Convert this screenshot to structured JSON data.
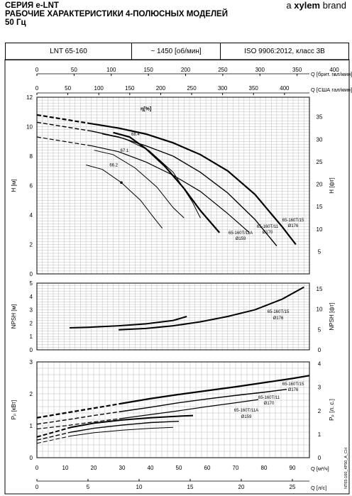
{
  "header": {
    "series_prefix": "СЕРИЯ ",
    "series_name": "e-LNT",
    "title_line1": "РАБОЧИЕ ХАРАКТЕРИСТИКИ 4-ПОЛЮСНЫХ МОДЕЛЕЙ",
    "title_line2": "50 Гц",
    "brand_prefix": "a",
    "brand_name": "xylem",
    "brand_suffix": "brand"
  },
  "info_bar": {
    "model": "LNT 65-160",
    "speed": "~ 1450 [об/мин]",
    "standard": "ISO 9906:2012, класс 3В"
  },
  "doc_code": "NT65-160_4P50_A_CH",
  "colors": {
    "curve": "#000000",
    "grid": "#bdbdbd",
    "frame": "#000000"
  },
  "chart_data": [
    {
      "type": "line",
      "panel": "head",
      "xlabel": "Q [м³/ч]",
      "xlim": [
        0,
        100
      ],
      "top_axes": [
        {
          "label": "Q [брит. гал/мин]",
          "ticks": [
            "0",
            "50",
            "100",
            "150",
            "200",
            "250",
            "300",
            "350",
            "400"
          ]
        },
        {
          "label": "Q [США гал/мин]",
          "ticks": [
            "0",
            "50",
            "100",
            "150",
            "200",
            "250",
            "300",
            "350",
            "400"
          ]
        }
      ],
      "ylabel": "H [м]",
      "ylim": [
        0,
        12
      ],
      "yticks": [
        "0",
        "2",
        "4",
        "6",
        "8",
        "10",
        "12"
      ],
      "ylabel_right": "H [фт]",
      "yticks_right": [
        "5",
        "10",
        "15",
        "20",
        "25",
        "30",
        "35"
      ],
      "grid": true,
      "series": [
        {
          "name": "65-160T/15 Ø176",
          "x": [
            0,
            10,
            20,
            30,
            40,
            50,
            60,
            70,
            80,
            90,
            95
          ],
          "y": [
            10.8,
            10.5,
            10.2,
            9.9,
            9.5,
            8.9,
            8.1,
            7.0,
            5.4,
            3.2,
            2.0
          ]
        },
        {
          "name": "65-160T/11 Ø170",
          "x": [
            0,
            10,
            20,
            30,
            40,
            50,
            60,
            70,
            80,
            88
          ],
          "y": [
            10.3,
            10.0,
            9.7,
            9.3,
            8.7,
            8.0,
            6.9,
            5.5,
            3.7,
            1.9
          ]
        },
        {
          "name": "65-160T/11A Ø159",
          "x": [
            0,
            10,
            20,
            30,
            40,
            50,
            60,
            70,
            78
          ],
          "y": [
            9.3,
            9.0,
            8.7,
            8.3,
            7.6,
            6.7,
            5.6,
            4.1,
            2.8
          ]
        }
      ],
      "efficiency_curves": [
        {
          "label": "68.4",
          "x": [
            24,
            32,
            41,
            50,
            57,
            60
          ],
          "y": [
            9.5,
            9.2,
            8.4,
            6.9,
            4.9,
            3.8
          ]
        },
        {
          "label": "67.1",
          "x": [
            21,
            28,
            36,
            44,
            50,
            54
          ],
          "y": [
            8.4,
            8.1,
            7.2,
            5.9,
            4.5,
            3.8
          ]
        },
        {
          "label": "66.2",
          "x": [
            18,
            24,
            31,
            38,
            43,
            46
          ],
          "y": [
            7.4,
            7.1,
            6.2,
            5.0,
            3.8,
            3.1
          ]
        },
        {
          "label": "",
          "x": [
            28,
            34,
            40,
            47,
            54,
            60,
            67
          ],
          "y": [
            9.6,
            9.3,
            8.5,
            7.3,
            5.8,
            4.3,
            2.8
          ]
        }
      ],
      "eta_label": "η[%]",
      "annotations": [
        "65-160T/15",
        "Ø176",
        "65-160T/11",
        "Ø170",
        "65-160T/11A",
        "Ø159"
      ]
    },
    {
      "type": "line",
      "panel": "npsh",
      "xlim": [
        0,
        100
      ],
      "ylabel": "NPSH [м]",
      "ylim": [
        0,
        5
      ],
      "yticks": [
        "0",
        "1",
        "2",
        "3",
        "4",
        "5"
      ],
      "ylabel_right": "NPSH [фт]",
      "yticks_right": [
        "0",
        "5",
        "10",
        "15"
      ],
      "grid": true,
      "series": [
        {
          "name": "65-160T/15 Ø176",
          "x": [
            30,
            40,
            50,
            60,
            70,
            80,
            90,
            98
          ],
          "y": [
            1.5,
            1.6,
            1.8,
            2.1,
            2.5,
            3.0,
            3.8,
            4.7
          ]
        },
        {
          "name": "",
          "x": [
            12,
            20,
            30,
            40,
            50,
            55
          ],
          "y": [
            1.65,
            1.7,
            1.8,
            1.95,
            2.2,
            2.5
          ]
        }
      ],
      "annotations": [
        "65-160T/15",
        "Ø176"
      ]
    },
    {
      "type": "line",
      "panel": "power",
      "xlabel": "Q [м³/ч]",
      "xticks": [
        "0",
        "10",
        "20",
        "30",
        "40",
        "50",
        "60",
        "70",
        "80",
        "90"
      ],
      "xlim": [
        0,
        96
      ],
      "xlabel2": "Q [л/с]",
      "xticks2": [
        "0",
        "5",
        "10",
        "15",
        "20",
        "25"
      ],
      "ylabel": "Pₚ [кВт]",
      "ylim": [
        0,
        3
      ],
      "yticks": [
        "0",
        "1",
        "2",
        "3"
      ],
      "ylabel_right": "Pₚ [л. с.]",
      "yticks_right": [
        "0",
        "1",
        "2",
        "3",
        "4"
      ],
      "grid": true,
      "series": [
        {
          "name": "65-160T/15 Ø176",
          "x": [
            0,
            10,
            20,
            30,
            40,
            50,
            60,
            70,
            80,
            90,
            96
          ],
          "y": [
            1.25,
            1.4,
            1.55,
            1.7,
            1.85,
            1.98,
            2.1,
            2.22,
            2.35,
            2.48,
            2.57
          ]
        },
        {
          "name": "65-160T/11 Ø170",
          "x": [
            0,
            10,
            20,
            30,
            40,
            50,
            60,
            70,
            80,
            88
          ],
          "y": [
            1.05,
            1.18,
            1.32,
            1.45,
            1.58,
            1.72,
            1.84,
            1.95,
            2.05,
            2.14
          ]
        },
        {
          "name": "65-160T/11A Ø159",
          "x": [
            0,
            10,
            20,
            30,
            40,
            50,
            60,
            70,
            78
          ],
          "y": [
            0.9,
            1.0,
            1.12,
            1.23,
            1.35,
            1.47,
            1.6,
            1.72,
            1.82
          ]
        },
        {
          "name": "",
          "x": [
            0,
            12,
            20,
            30,
            40,
            50,
            55
          ],
          "y": [
            0.65,
            0.95,
            1.08,
            1.18,
            1.25,
            1.3,
            1.32
          ]
        },
        {
          "name": "",
          "x": [
            0,
            12,
            20,
            30,
            40,
            50
          ],
          "y": [
            0.55,
            0.8,
            0.92,
            1.02,
            1.1,
            1.14
          ]
        },
        {
          "name": "",
          "x": [
            0,
            12,
            20,
            30,
            40,
            48
          ],
          "y": [
            0.45,
            0.68,
            0.78,
            0.86,
            0.92,
            0.95
          ]
        }
      ],
      "annotations": [
        "65-160T/15",
        "Ø176",
        "65-160T/11",
        "Ø170",
        "65-160T/11A",
        "Ø159"
      ]
    }
  ]
}
